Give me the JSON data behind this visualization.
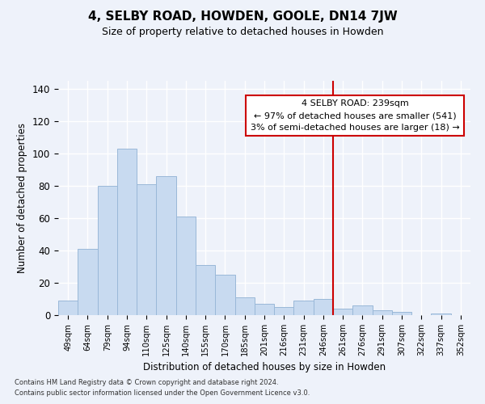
{
  "title": "4, SELBY ROAD, HOWDEN, GOOLE, DN14 7JW",
  "subtitle": "Size of property relative to detached houses in Howden",
  "xlabel": "Distribution of detached houses by size in Howden",
  "ylabel": "Number of detached properties",
  "bar_labels": [
    "49sqm",
    "64sqm",
    "79sqm",
    "94sqm",
    "110sqm",
    "125sqm",
    "140sqm",
    "155sqm",
    "170sqm",
    "185sqm",
    "201sqm",
    "216sqm",
    "231sqm",
    "246sqm",
    "261sqm",
    "276sqm",
    "291sqm",
    "307sqm",
    "322sqm",
    "337sqm",
    "352sqm"
  ],
  "bar_values": [
    9,
    41,
    80,
    103,
    81,
    86,
    61,
    31,
    25,
    11,
    7,
    5,
    9,
    10,
    4,
    6,
    3,
    2,
    0,
    1,
    0
  ],
  "bar_color": "#c8daf0",
  "bar_edge_color": "#9ab8d8",
  "vline_x": 13.5,
  "vline_color": "#cc0000",
  "annotation_title": "4 SELBY ROAD: 239sqm",
  "annotation_line1": "← 97% of detached houses are smaller (541)",
  "annotation_line2": "3% of semi-detached houses are larger (18) →",
  "annotation_box_color": "#ffffff",
  "annotation_border_color": "#cc0000",
  "ylim": [
    0,
    145
  ],
  "yticks": [
    0,
    20,
    40,
    60,
    80,
    100,
    120,
    140
  ],
  "footnote1": "Contains HM Land Registry data © Crown copyright and database right 2024.",
  "footnote2": "Contains public sector information licensed under the Open Government Licence v3.0.",
  "background_color": "#eef2fa",
  "grid_color": "#ffffff",
  "fig_width": 6.0,
  "fig_height": 5.0,
  "fig_dpi": 100
}
